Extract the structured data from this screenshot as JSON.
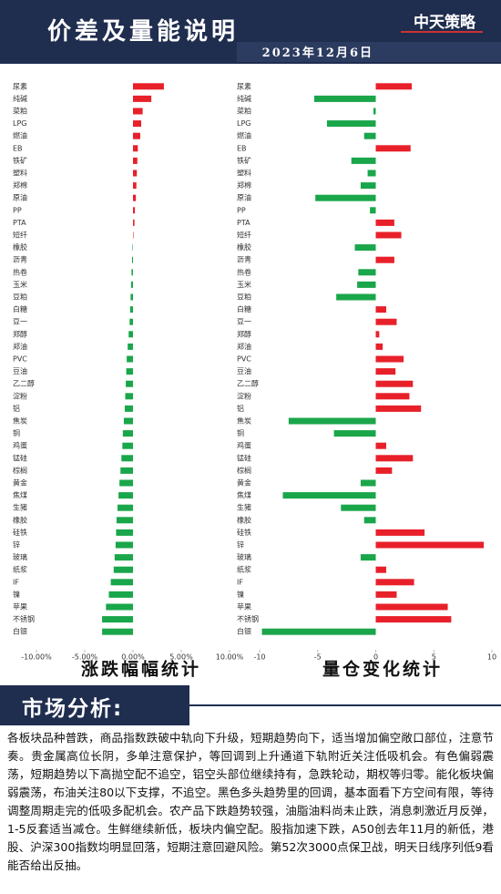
{
  "header": {
    "title": "价差及量能说明",
    "logo": "中天策略",
    "date": "2023年12月6日"
  },
  "chart_data": [
    {
      "type": "bar",
      "orientation": "horizontal",
      "title": "涨跌幅幅统计",
      "categories": [
        "尿素",
        "纯碱",
        "菜粕",
        "LPG",
        "燃油",
        "EB",
        "铁矿",
        "塑料",
        "郑棉",
        "原油",
        "PP",
        "PTA",
        "短纤",
        "橡胶",
        "沥青",
        "热卷",
        "玉米",
        "豆粕",
        "白糖",
        "豆一",
        "郑醇",
        "郑油",
        "PVC",
        "豆油",
        "乙二醇",
        "淀粉",
        "铝",
        "焦炭",
        "铜",
        "鸡蛋",
        "锰硅",
        "棕榈",
        "黄金",
        "焦煤",
        "生猪",
        "橡胶",
        "硅铁",
        "锌",
        "玻璃",
        "纸浆",
        "IF",
        "镍",
        "苹果",
        "不锈钢",
        "白银"
      ],
      "values": [
        3.2,
        1.9,
        1.0,
        0.85,
        0.75,
        0.5,
        0.45,
        0.4,
        0.35,
        0.3,
        0.2,
        0.15,
        0.05,
        -0.05,
        -0.1,
        -0.15,
        -0.2,
        -0.25,
        -0.3,
        -0.35,
        -0.45,
        -0.55,
        -0.65,
        -0.7,
        -0.75,
        -0.8,
        -0.85,
        -0.95,
        -1.05,
        -1.1,
        -1.2,
        -1.3,
        -1.4,
        -1.5,
        -1.6,
        -1.7,
        -1.75,
        -1.8,
        -1.9,
        -2.0,
        -2.3,
        -2.5,
        -2.8,
        -3.2,
        -3.2
      ],
      "xlim": [
        -10,
        10
      ],
      "xticks": [
        {
          "value": -10,
          "label": "-10.00%"
        },
        {
          "value": -5,
          "label": "-5.00%"
        },
        {
          "value": 0,
          "label": "0.00%"
        },
        {
          "value": 5,
          "label": "5.00%"
        },
        {
          "value": 10,
          "label": "10.00%"
        }
      ],
      "color_positive": "#e8202a",
      "color_negative": "#1aa64a"
    },
    {
      "type": "bar",
      "orientation": "horizontal",
      "title": "量仓变化统计",
      "categories": [
        "尿素",
        "纯碱",
        "菜粕",
        "LPG",
        "燃油",
        "EB",
        "铁矿",
        "塑料",
        "郑棉",
        "原油",
        "PP",
        "PTA",
        "短纤",
        "橡胶",
        "沥青",
        "热卷",
        "玉米",
        "豆粕",
        "白糖",
        "豆一",
        "郑醇",
        "郑油",
        "PVC",
        "豆油",
        "乙二醇",
        "淀粉",
        "铝",
        "焦炭",
        "铜",
        "鸡蛋",
        "锰硅",
        "棕榈",
        "黄金",
        "焦煤",
        "生猪",
        "橡胶",
        "硅铁",
        "锌",
        "玻璃",
        "纸浆",
        "IF",
        "镍",
        "苹果",
        "不锈钢",
        "白银"
      ],
      "values": [
        3.1,
        -5.3,
        -0.2,
        -4.2,
        -1.0,
        3.0,
        -2.1,
        -0.7,
        -1.3,
        -5.2,
        -0.5,
        1.6,
        2.2,
        -1.8,
        1.6,
        -1.5,
        -1.6,
        -3.4,
        0.9,
        1.8,
        0.3,
        0.6,
        2.4,
        1.7,
        3.2,
        2.9,
        3.9,
        -7.5,
        -3.6,
        0.9,
        3.2,
        1.4,
        -1.3,
        -8.0,
        -3.0,
        -1.0,
        4.2,
        9.3,
        -1.3,
        0.9,
        3.3,
        1.8,
        6.2,
        6.5,
        -9.8
      ],
      "xlim": [
        -10,
        10
      ],
      "xticks": [
        -10,
        -5,
        0,
        5,
        10
      ],
      "color_positive": "#e8202a",
      "color_negative": "#1aa64a"
    }
  ],
  "analysis": {
    "heading": "市场分析:",
    "text": "各板块品种普跌，商品指数跌破中轨向下升级，短期趋势向下，适当增加偏空敞口部位，注意节奏。贵金属高位长阴，多单注意保护，等回调到上升通道下轨附近关注低吸机会。有色偏弱震荡，短期趋势以下高抛空配不追空，铝空头部位继续持有，急跌轮动，期权等归零。能化板块偏弱震荡，布油关注80以下支撑，不追空。黑色多头趋势里的回调，基本面看下方空间有限，等待调整周期走完的低吸多配机会。农产品下跌趋势较强，油脂油料尚未止跌，消息刺激近月反弹，1-5反套适当减仓。生鲜继续新低，板块内偏空配。股指加速下跌，A50创去年11月的新低，港股、沪深300指数均明显回落，短期注意回避风险。第52次3000点保卫战，明天日线序列低9看能否给出反抽。"
  }
}
